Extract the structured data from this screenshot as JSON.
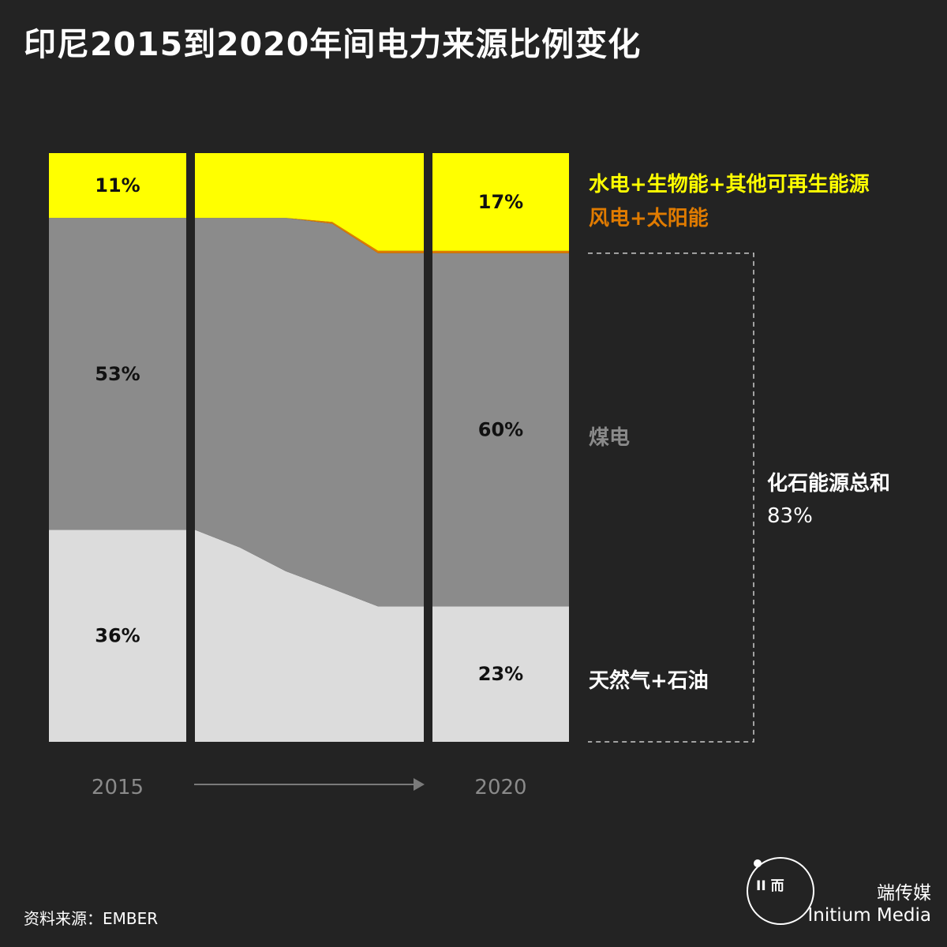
{
  "title": "印尼2015到2020年间电力来源比例变化",
  "source": "资料来源：EMBER",
  "brand": {
    "chinese": "端传媒",
    "english": "Initium Media",
    "logo_text": "ΙΙ 而",
    "logo_icon": "initium-circle-logo"
  },
  "colors": {
    "background": "#232323",
    "hydro_bio_other": "#ffff00",
    "wind_solar": "#e07b00",
    "coal": "#8b8b8b",
    "gas_oil": "#dcdcdc",
    "fossil_total": "#ffffff",
    "muted": "#8a8a8a"
  },
  "chart_data": {
    "type": "area",
    "x": [
      "2015",
      "2016",
      "2017",
      "2018",
      "2019",
      "2020"
    ],
    "start_label": "2015",
    "end_label": "2020",
    "ylim": [
      0,
      100
    ],
    "series": [
      {
        "name": "天然气+石油",
        "values": [
          36,
          33,
          29,
          26,
          23,
          23
        ]
      },
      {
        "name": "煤电",
        "values": [
          53,
          56,
          60,
          62,
          60,
          60
        ]
      },
      {
        "name": "风电+太阳能",
        "values": [
          0,
          0,
          0,
          0.3,
          0.4,
          0.4
        ]
      },
      {
        "name": "水电+生物能+其他可再生能源",
        "values": [
          11,
          11,
          11,
          11.7,
          16.6,
          16.6
        ]
      }
    ],
    "value_labels": {
      "2015": {
        "gas_oil": "36%",
        "coal": "53%",
        "renewables": "11%"
      },
      "2020": {
        "gas_oil": "23%",
        "coal": "60%",
        "renewables": "17%"
      }
    },
    "legend": {
      "hydro_bio_other": "水电+生物能+其他可再生能源",
      "wind_solar": "风电+太阳能",
      "coal": "煤电",
      "gas_oil": "天然气+石油"
    },
    "fossil_total": {
      "label": "化石能源总和",
      "value": "83%"
    }
  }
}
